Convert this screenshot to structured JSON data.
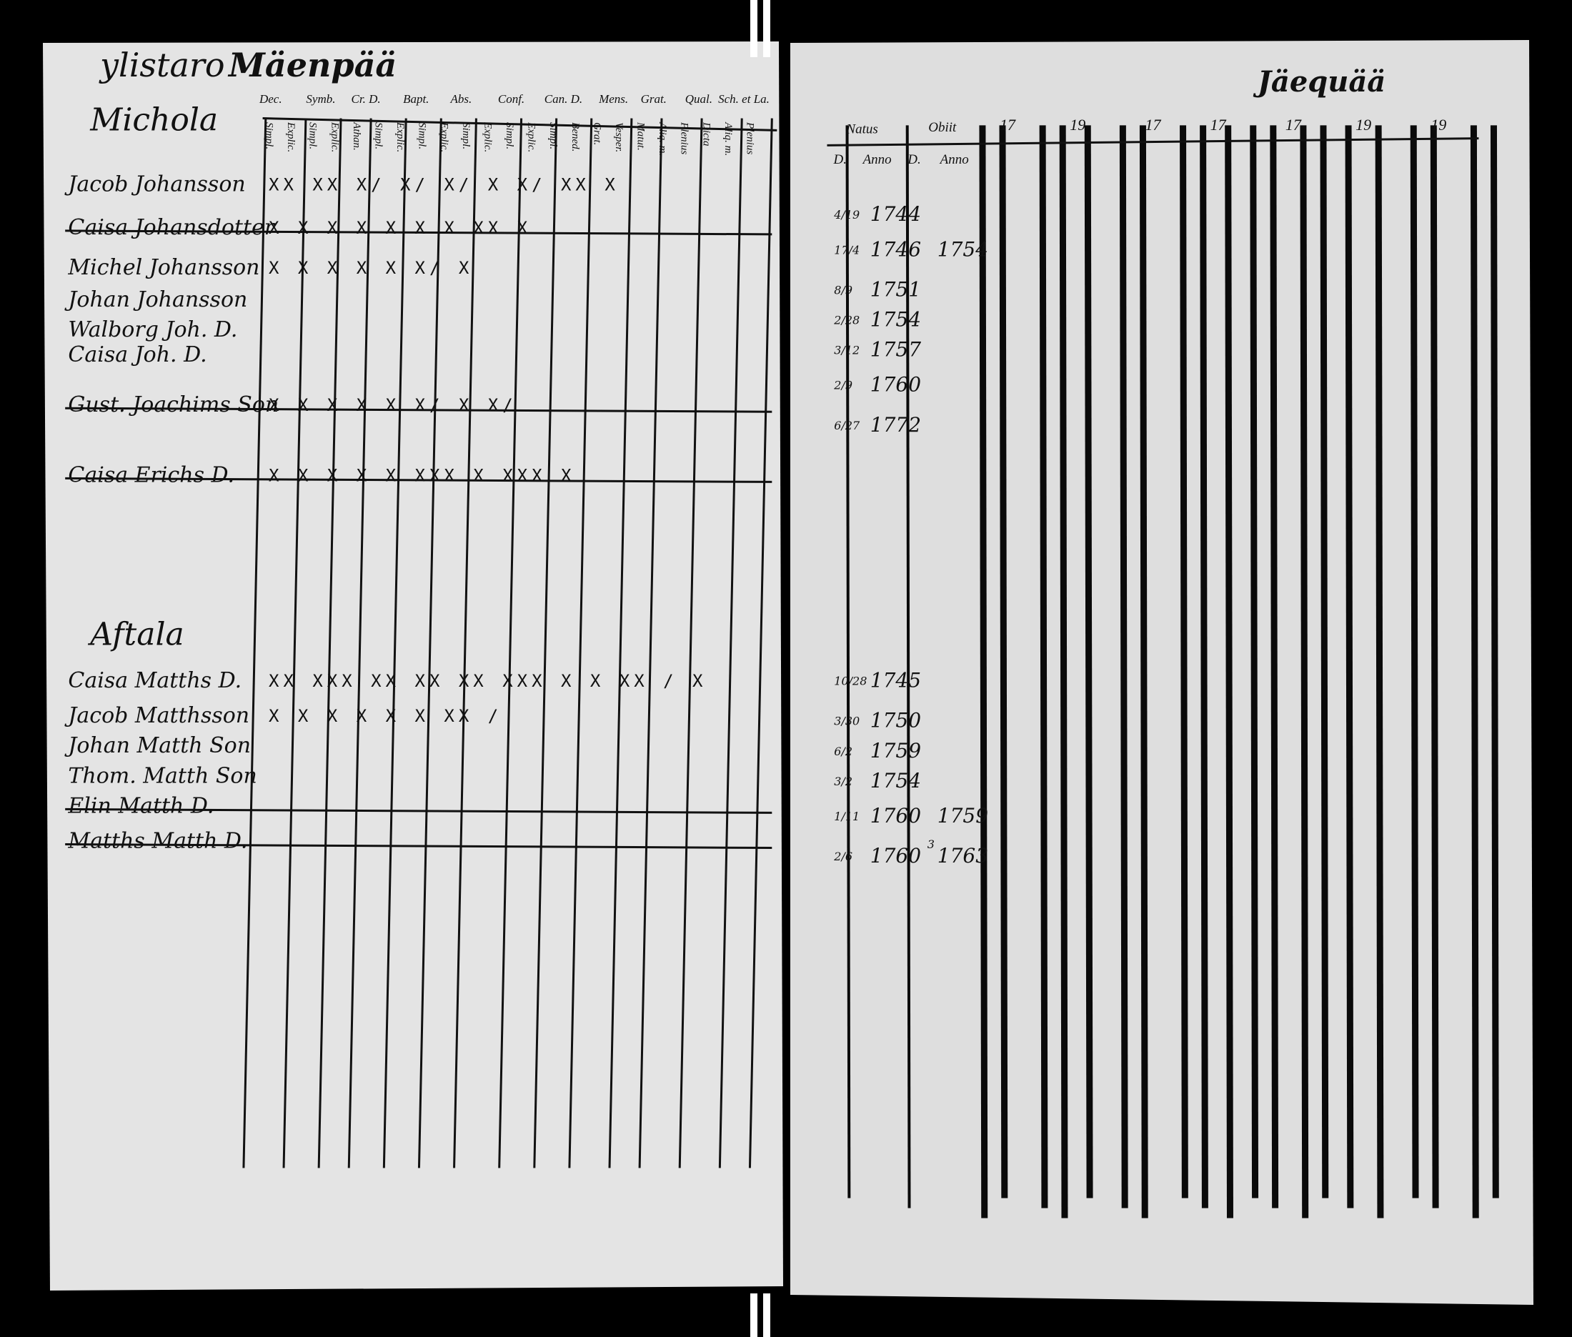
{
  "header": {
    "parish": "ylistaro",
    "village": "Mäenpää",
    "top_right": "Jäequää"
  },
  "columns": {
    "groups": [
      "Dec.",
      "Symb.",
      "Cr. D.",
      "Bapt.",
      "Abs.",
      "Conf.",
      "Can. D.",
      "Mens.",
      "Grat.",
      "Qual.",
      "Sch. et La."
    ],
    "sub": [
      "Simpl.",
      "Explic.",
      "Simpl.",
      "Explic.",
      "Athan.",
      "Simpl.",
      "Explic.",
      "Simpl.",
      "Explic.",
      "Simpl.",
      "Explic.",
      "Simpl.",
      "Explic.",
      "Simpl.",
      "Bened.",
      "Grat.",
      "Vesper.",
      "Matut.",
      "Aliq. m.",
      "Plenius",
      "Dicta",
      "Aliq. m.",
      "Plenius"
    ]
  },
  "right_header": {
    "natus": "Natus",
    "obiit": "Obiit",
    "day_born": "D.",
    "anno_born": "Anno",
    "day_died": "D.",
    "anno_died": "Anno",
    "decades": [
      "17",
      "19",
      "17",
      "17",
      "17",
      "19",
      "19"
    ]
  },
  "households": [
    {
      "name": "Michola",
      "rows": [
        {
          "name": "Jacob Johansson",
          "marks": "XX XX X/ X/ X/ X X/ XX X",
          "born_day": "4/19",
          "born_year": "1744"
        },
        {
          "name": "Caisa Johansdotter",
          "struck": true,
          "marks": "X X X X X  X X XX X",
          "born_day": "17/4",
          "born_year": "1746",
          "died_year": "1754"
        },
        {
          "name": "Michel Johansson",
          "marks": "X X X X  X X/ X",
          "born_day": "8/9",
          "born_year": "1751"
        },
        {
          "name": "Johan Johansson",
          "born_day": "2/28",
          "born_year": "1754"
        },
        {
          "name": "Walborg Joh. D.",
          "born_day": "3/12",
          "born_year": "1757"
        },
        {
          "name": "Caisa Joh. D.",
          "born_day": "2/9",
          "born_year": "1760"
        },
        {
          "name": "Gust. Joachims Son",
          "struck": true,
          "marks": "X X X X X  X/ X X/",
          "born_day": "6/27",
          "born_year": "1772"
        },
        {
          "name": "Caisa Erichs D.",
          "struck": true,
          "marks": "X X X X X XXX X XXX X"
        }
      ]
    },
    {
      "name": "Aftala",
      "rows": [
        {
          "name": "Caisa Matths D.",
          "marks": "XX XXX XX XX XX XXX X X XX / X",
          "born_day": "10/28",
          "born_year": "1745"
        },
        {
          "name": "Jacob Matthsson",
          "marks": "X X X X  X X XX /",
          "born_day": "3/30",
          "born_year": "1750"
        },
        {
          "name": "Johan Matth Son",
          "born_day": "6/2",
          "born_year": "1759"
        },
        {
          "name": "Thom. Matth Son",
          "born_day": "3/2",
          "born_year": "1754"
        },
        {
          "name": "Elin Matth D.",
          "struck": true,
          "born_day": "1/11",
          "born_year": "1760",
          "died_year": "1759"
        },
        {
          "name": "Matths Matth D.",
          "struck": true,
          "born_day": "2/6",
          "born_year": "1760",
          "died_day": "3",
          "died_year": "1763"
        }
      ]
    }
  ]
}
